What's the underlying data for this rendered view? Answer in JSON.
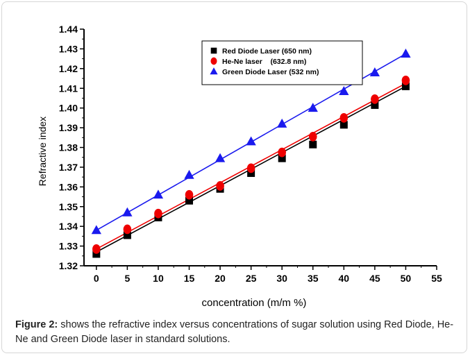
{
  "chart_data": {
    "type": "scatter",
    "title": "",
    "xlabel": "concentration (m/m %)",
    "ylabel": "Refractive index",
    "xlim": [
      -2,
      55
    ],
    "ylim": [
      1.32,
      1.44
    ],
    "xticks": [
      0,
      5,
      10,
      15,
      20,
      25,
      30,
      35,
      40,
      45,
      50,
      55
    ],
    "xtick_labels": [
      "0",
      "5",
      "10",
      "15",
      "20",
      "25",
      "30",
      "35",
      "40",
      "45",
      "50",
      "55"
    ],
    "yticks": [
      1.32,
      1.33,
      1.34,
      1.35,
      1.36,
      1.37,
      1.38,
      1.39,
      1.4,
      1.41,
      1.42,
      1.43,
      1.44
    ],
    "ytick_labels": [
      "1.32",
      "1.33",
      "1.34",
      "1.35",
      "1.36",
      "1.37",
      "1.38",
      "1.39",
      "1.40",
      "1.41",
      "1.42",
      "1.43",
      "1.44"
    ],
    "grid": false,
    "legend_position": "top-center",
    "x": [
      0,
      5,
      10,
      15,
      20,
      25,
      30,
      35,
      40,
      45,
      50
    ],
    "series": [
      {
        "name": "Red Diode Laser (650 nm)",
        "marker": "square",
        "color": "#000000",
        "values": [
          1.326,
          1.3355,
          1.3445,
          1.353,
          1.359,
          1.367,
          1.3745,
          1.3815,
          1.3915,
          1.4015,
          1.411
        ],
        "fit": [
          1.327,
          1.411
        ]
      },
      {
        "name": "He-Ne laser    (632.8 nm)",
        "marker": "circle",
        "color": "#ee0000",
        "values": [
          1.3285,
          1.3385,
          1.3465,
          1.356,
          1.3605,
          1.3695,
          1.3775,
          1.3855,
          1.395,
          1.4045,
          1.414
        ],
        "fit": [
          1.3285,
          1.4125
        ]
      },
      {
        "name": "Green Diode Laser (532 nm)",
        "marker": "triangle",
        "color": "#1a1aee",
        "values": [
          1.338,
          1.347,
          1.356,
          1.366,
          1.3745,
          1.383,
          1.392,
          1.4,
          1.4085,
          1.418,
          1.4275
        ],
        "fit": [
          1.338,
          1.4275
        ]
      }
    ]
  },
  "caption": {
    "label": "Figure 2:",
    "text": " shows the refractive index versus concentrations of sugar solution using Red Diode, He-Ne and Green Diode laser in standard solutions."
  }
}
